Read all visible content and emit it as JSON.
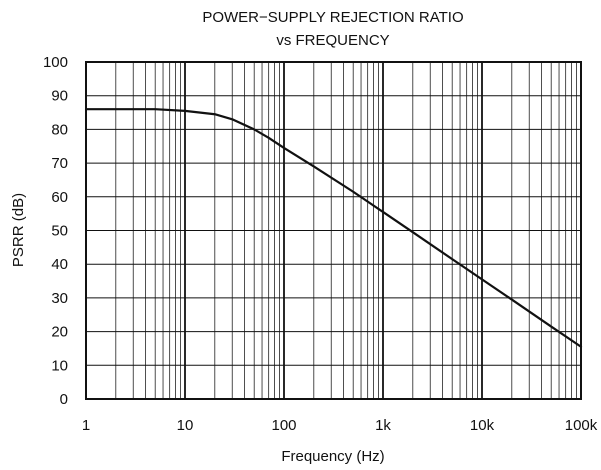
{
  "chart_data": {
    "type": "line",
    "title_line1": "POWER−SUPPLY REJECTION RATIO",
    "title_line2": "vs FREQUENCY",
    "xlabel": "Frequency (Hz)",
    "ylabel": "PSRR (dB)",
    "x_scale": "log",
    "xlim": [
      1,
      100000
    ],
    "ylim": [
      0,
      100
    ],
    "x_ticks": [
      {
        "value": 1,
        "label": "1"
      },
      {
        "value": 10,
        "label": "10"
      },
      {
        "value": 100,
        "label": "100"
      },
      {
        "value": 1000,
        "label": "1k"
      },
      {
        "value": 10000,
        "label": "10k"
      },
      {
        "value": 100000,
        "label": "100k"
      }
    ],
    "y_ticks": [
      {
        "value": 0,
        "label": "0"
      },
      {
        "value": 10,
        "label": "10"
      },
      {
        "value": 20,
        "label": "20"
      },
      {
        "value": 30,
        "label": "30"
      },
      {
        "value": 40,
        "label": "40"
      },
      {
        "value": 50,
        "label": "50"
      },
      {
        "value": 60,
        "label": "60"
      },
      {
        "value": 70,
        "label": "70"
      },
      {
        "value": 80,
        "label": "80"
      },
      {
        "value": 90,
        "label": "90"
      },
      {
        "value": 100,
        "label": "100"
      }
    ],
    "grid": true,
    "series": [
      {
        "color": "#111111",
        "x": [
          1,
          2,
          5,
          10,
          20,
          30,
          50,
          70,
          100,
          200,
          500,
          1000,
          2000,
          5000,
          10000,
          20000,
          50000,
          100000
        ],
        "y": [
          86,
          86,
          86,
          85.5,
          84.5,
          83,
          80,
          77.5,
          74.5,
          69,
          61.5,
          55.5,
          49.5,
          41.5,
          35.5,
          29.5,
          21.5,
          15.5
        ]
      }
    ]
  }
}
